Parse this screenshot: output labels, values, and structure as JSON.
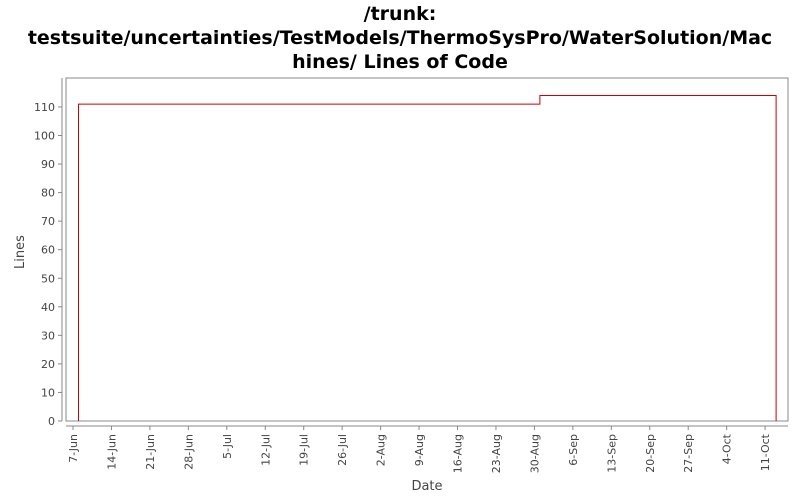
{
  "chart_data": {
    "type": "line",
    "subtype": "step",
    "title_lines": [
      "/trunk:",
      "testsuite/uncertainties/TestModels/ThermoSysPro/WaterSolution/Mac",
      "hines/ Lines of Code"
    ],
    "title": "/trunk: testsuite/uncertainties/TestModels/ThermoSysPro/WaterSolution/Machines/ Lines of Code",
    "xlabel": "Date",
    "ylabel": "Lines",
    "ylim": [
      0,
      120
    ],
    "yticks": [
      0,
      10,
      20,
      30,
      40,
      50,
      60,
      70,
      80,
      90,
      100,
      110
    ],
    "xticks": [
      "7-Jun",
      "14-Jun",
      "21-Jun",
      "28-Jun",
      "5-Jul",
      "12-Jul",
      "19-Jul",
      "26-Jul",
      "2-Aug",
      "9-Aug",
      "16-Aug",
      "23-Aug",
      "30-Aug",
      "6-Sep",
      "13-Sep",
      "20-Sep",
      "27-Sep",
      "4-Oct",
      "11-Oct"
    ],
    "grid": false,
    "legend": "none",
    "series": [
      {
        "name": "Lines",
        "color": "#cc0000",
        "points": [
          {
            "x": "8-Jun",
            "y": 0
          },
          {
            "x": "8-Jun",
            "y": 111
          },
          {
            "x": "31-Aug",
            "y": 111
          },
          {
            "x": "31-Aug",
            "y": 114
          },
          {
            "x": "13-Oct",
            "y": 114
          },
          {
            "x": "13-Oct",
            "y": 0
          }
        ]
      }
    ]
  }
}
